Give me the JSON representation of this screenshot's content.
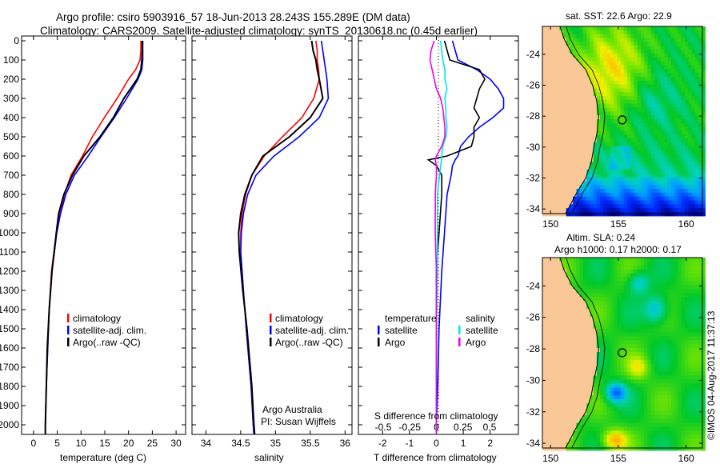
{
  "title_line1": "Argo profile: csiro 5903916_57 18-Jun-2013 28.243S 155.289E (DM data)",
  "title_line2": "Climatology: CARS2009. Satellite-adjusted climatology: synTS_20130618.nc (0.45d earlier)",
  "credit": "©IMOS 04-Aug-2017 11:37:13",
  "colors": {
    "climatology": "#ff0000",
    "satellite": "#0000ff",
    "argo": "#000000",
    "sal_satellite": "#00e5ee",
    "sal_argo": "#ee00ee",
    "land": "#f9c896"
  },
  "chart_data": [
    {
      "type": "line",
      "id": "temperature",
      "xlabel": "temperature (deg C)",
      "ylabel": "depth",
      "xlim": [
        -2.5,
        32
      ],
      "ylim": [
        2050,
        -25
      ],
      "xticks": [
        0,
        5,
        10,
        15,
        20,
        25,
        30
      ],
      "yticks": [
        0,
        100,
        200,
        300,
        400,
        500,
        600,
        700,
        800,
        900,
        1000,
        1100,
        1200,
        1300,
        1400,
        1500,
        1600,
        1700,
        1800,
        1900,
        2000
      ],
      "depth": [
        0,
        50,
        100,
        150,
        200,
        300,
        400,
        500,
        600,
        700,
        800,
        900,
        1000,
        1200,
        1400,
        1600,
        1800,
        2000,
        2050
      ],
      "series": [
        {
          "name": "climatology",
          "values": [
            22.6,
            22.6,
            22.4,
            21.5,
            20.0,
            17.6,
            14.9,
            12.4,
            10.3,
            7.9,
            6.5,
            5.6,
            4.8,
            3.8,
            3.3,
            3.0,
            2.7,
            2.5,
            2.5
          ]
        },
        {
          "name": "satellite-adj. clim.",
          "values": [
            23.0,
            23.0,
            23.0,
            22.8,
            22.0,
            19.6,
            17.0,
            14.2,
            11.5,
            8.6,
            6.8,
            5.7,
            4.9,
            3.9,
            3.3,
            3.0,
            2.7,
            2.5,
            2.5
          ]
        },
        {
          "name": "Argo(..raw -QC)",
          "values": [
            22.9,
            22.9,
            22.8,
            22.6,
            21.8,
            19.0,
            16.8,
            14.0,
            10.6,
            8.2,
            6.4,
            5.3,
            4.8,
            3.9,
            3.3,
            2.9,
            2.7,
            2.5,
            2.5
          ]
        }
      ],
      "legend": [
        "climatology",
        "satellite-adj. clim.",
        "Argo(..raw -QC)"
      ],
      "legend_position": "center-left"
    },
    {
      "type": "line",
      "id": "salinity",
      "xlabel": "salinity",
      "xlim": [
        33.8,
        36.1
      ],
      "ylim": [
        2050,
        -25
      ],
      "xticks": [
        34,
        34.5,
        35,
        35.5,
        36
      ],
      "depth": [
        0,
        50,
        100,
        150,
        200,
        300,
        400,
        500,
        600,
        700,
        800,
        900,
        1000,
        1100,
        1300,
        1500,
        1800,
        2000,
        2050
      ],
      "series": [
        {
          "name": "climatology",
          "values": [
            35.58,
            35.6,
            35.6,
            35.62,
            35.63,
            35.55,
            35.38,
            35.1,
            34.84,
            34.66,
            34.57,
            34.52,
            34.5,
            34.5,
            34.54,
            34.58,
            34.65,
            34.68,
            34.69
          ]
        },
        {
          "name": "satellite-adj. clim.",
          "values": [
            35.66,
            35.68,
            35.7,
            35.72,
            35.74,
            35.76,
            35.63,
            35.34,
            34.98,
            34.72,
            34.6,
            34.54,
            34.51,
            34.5,
            34.54,
            34.58,
            34.65,
            34.68,
            34.69
          ]
        },
        {
          "name": "Argo(..raw -QC)",
          "values": [
            35.52,
            35.54,
            35.58,
            35.6,
            35.63,
            35.68,
            35.5,
            35.2,
            34.82,
            34.66,
            34.56,
            34.5,
            34.47,
            34.48,
            34.53,
            34.59,
            34.66,
            34.69,
            34.7
          ]
        }
      ],
      "legend": [
        "climatology",
        "satellite-adj. clim.",
        "Argo(..raw -QC)"
      ],
      "annotation_1": "Argo Australia",
      "annotation_2": "PI: Susan Wijffels"
    },
    {
      "type": "line",
      "id": "differences",
      "xlabel": "T difference from climatology",
      "xlabel_top": "S difference from climatology",
      "xlim": [
        -2.9,
        3.05
      ],
      "xticks": [
        -2,
        -1,
        0,
        1,
        2
      ],
      "s_xticks": [
        -0.5,
        -0.25,
        0,
        0.25,
        0.5
      ],
      "s_xtick_labels": [
        "-0.5",
        "-0.25",
        "0",
        "0.25",
        "0.5"
      ],
      "depth": [
        0,
        50,
        100,
        150,
        200,
        250,
        300,
        350,
        400,
        450,
        500,
        550,
        600,
        620,
        650,
        700,
        800,
        1000,
        1200,
        1500,
        1800,
        2000,
        2050
      ],
      "series": [
        {
          "name": "temperature satellite",
          "kind": "T",
          "values": [
            0.6,
            0.7,
            0.8,
            1.5,
            2.0,
            2.3,
            2.5,
            2.5,
            2.1,
            1.6,
            1.2,
            0.9,
            0.8,
            0.7,
            0.6,
            0.55,
            0.4,
            0.3,
            0.2,
            0.1,
            0.05,
            0.0,
            0.0
          ]
        },
        {
          "name": "temperature Argo",
          "kind": "T",
          "values": [
            0.3,
            0.4,
            0.5,
            1.6,
            1.8,
            1.6,
            1.5,
            1.4,
            1.6,
            1.4,
            1.4,
            1.3,
            0.4,
            -0.3,
            0.0,
            0.2,
            0.2,
            0.1,
            0.0,
            0.0,
            0.0,
            0.0,
            0.0
          ]
        },
        {
          "name": "salinity satellite",
          "kind": "S",
          "values": [
            0.04,
            0.05,
            0.06,
            0.08,
            0.08,
            0.1,
            0.08,
            0.09,
            0.09,
            0.1,
            0.09,
            0.06,
            0.05,
            0.05,
            0.04,
            0.03,
            0.01,
            0.01,
            0.01,
            0.0,
            0.0,
            0.0,
            0.0
          ]
        },
        {
          "name": "salinity Argo",
          "kind": "S",
          "values": [
            -0.02,
            -0.05,
            -0.06,
            -0.04,
            -0.02,
            0.0,
            0.04,
            0.06,
            0.07,
            0.08,
            0.08,
            0.05,
            0.0,
            -0.01,
            0.0,
            0.0,
            -0.01,
            -0.01,
            0.0,
            0.0,
            0.0,
            0.0,
            0.0
          ]
        }
      ],
      "legend_temperature_title": "temperature",
      "legend_salinity_title": "salinity",
      "legend_satellite": "satellite",
      "legend_argo": "Argo"
    },
    {
      "type": "heatmap",
      "id": "sst_map",
      "title": "sat. SST: 22.6 Argo: 22.9",
      "xlim": [
        149.4,
        161.2
      ],
      "ylim": [
        -34.3,
        -22.2
      ],
      "xticks": [
        150,
        155,
        160
      ],
      "yticks": [
        -24,
        -26,
        -28,
        -30,
        -32,
        -34
      ],
      "marker": {
        "lon": 155.289,
        "lat": -28.243
      }
    },
    {
      "type": "heatmap",
      "id": "sla_map",
      "title_1": "Altim. SLA: 0.24",
      "title_2": "Argo h1000: 0.17 h2000: 0.17",
      "xlim": [
        149.4,
        161.2
      ],
      "ylim": [
        -34.3,
        -22.2
      ],
      "xticks": [
        150,
        155,
        160
      ],
      "yticks": [
        -24,
        -26,
        -28,
        -30,
        -32,
        -34
      ],
      "marker": {
        "lon": 155.289,
        "lat": -28.243
      }
    }
  ]
}
